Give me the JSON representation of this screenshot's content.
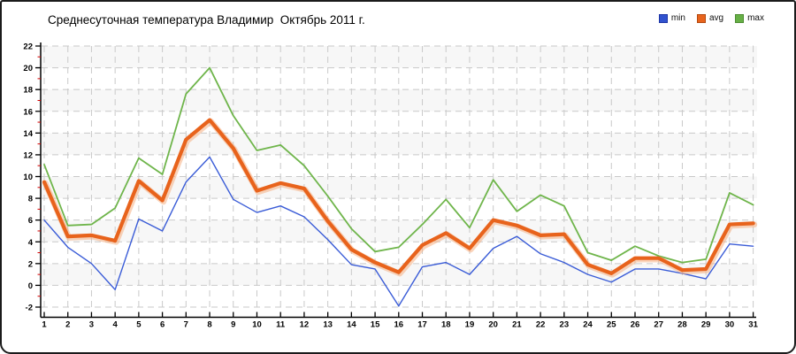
{
  "chart": {
    "title": "Среднесуточная температура Владимир  Октябрь 2011 г."
  },
  "legend": {
    "items": [
      {
        "label": "min",
        "color": "#3152ce",
        "border": "#1d35a6"
      },
      {
        "label": "avg",
        "color": "#e8641d",
        "border": "#b44a10"
      },
      {
        "label": "max",
        "color": "#67b046",
        "border": "#4c8d31"
      }
    ]
  },
  "chart_data": {
    "type": "line",
    "title": "Среднесуточная температура Владимир  Октябрь 2011 г.",
    "xlabel": "",
    "ylabel": "",
    "x": [
      1,
      2,
      3,
      4,
      5,
      6,
      7,
      8,
      9,
      10,
      11,
      12,
      13,
      14,
      15,
      16,
      17,
      18,
      19,
      20,
      21,
      22,
      23,
      24,
      25,
      26,
      27,
      28,
      29,
      30,
      31
    ],
    "y_ticks": [
      22,
      20,
      18,
      16,
      14,
      12,
      10,
      8,
      6,
      4,
      2,
      0,
      -2
    ],
    "ylim": [
      -2,
      22
    ],
    "grid": true,
    "legend_position": "top-right",
    "series": [
      {
        "name": "min",
        "color": "#3a5cd7",
        "width": 1.4,
        "values": [
          6.0,
          3.5,
          2.0,
          -0.4,
          6.1,
          5.0,
          9.5,
          11.8,
          7.9,
          6.7,
          7.3,
          6.3,
          4.2,
          1.9,
          1.5,
          -1.9,
          1.7,
          2.1,
          1.0,
          3.4,
          4.5,
          2.9,
          2.1,
          1.0,
          0.3,
          1.5,
          1.5,
          1.1,
          0.6,
          3.8,
          3.6
        ]
      },
      {
        "name": "avg",
        "color": "#e8631c",
        "width": 4.2,
        "values": [
          9.5,
          4.5,
          4.6,
          4.1,
          9.6,
          7.8,
          13.4,
          15.2,
          12.6,
          8.7,
          9.4,
          8.9,
          5.9,
          3.3,
          2.1,
          1.2,
          3.7,
          4.8,
          3.4,
          6.0,
          5.5,
          4.6,
          4.7,
          1.9,
          1.1,
          2.5,
          2.5,
          1.4,
          1.5,
          5.6,
          5.7
        ]
      },
      {
        "name": "max",
        "color": "#6fb54b",
        "width": 1.8,
        "values": [
          11.1,
          5.5,
          5.6,
          7.1,
          11.7,
          10.2,
          17.6,
          20.0,
          15.6,
          12.4,
          12.9,
          11.0,
          8.2,
          5.2,
          3.1,
          3.5,
          5.6,
          7.9,
          5.3,
          9.7,
          6.8,
          8.3,
          7.3,
          3.0,
          2.3,
          3.6,
          2.7,
          2.1,
          2.4,
          8.5,
          7.4
        ]
      }
    ],
    "style": {
      "band_fill": "#f7f7f7",
      "grid_color": "#c9c9c9",
      "axis_color": "#000000",
      "minor_tick_color": "#d40000",
      "avg_halo": "#f6b183"
    }
  }
}
